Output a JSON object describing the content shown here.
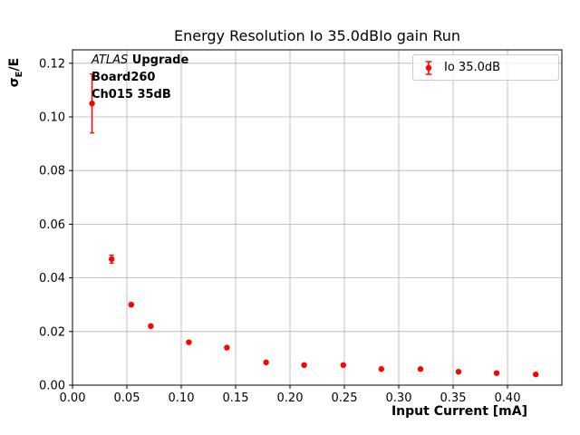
{
  "chart_data": {
    "type": "scatter",
    "title": "Energy Resolution Io 35.0dBIo gain Run",
    "xlabel": "Input Current [mA]",
    "ylabel": {
      "prefix": "σ",
      "sub": "E",
      "suffix": "/E"
    },
    "xlim": [
      0,
      0.45
    ],
    "ylim": [
      0,
      0.125
    ],
    "grid": true,
    "xticks": [
      0.0,
      0.05,
      0.1,
      0.15,
      0.2,
      0.25,
      0.3,
      0.35,
      0.4
    ],
    "xtick_labels": [
      "0.00",
      "0.05",
      "0.10",
      "0.15",
      "0.20",
      "0.25",
      "0.30",
      "0.35",
      "0.40"
    ],
    "yticks": [
      0.0,
      0.02,
      0.04,
      0.06,
      0.08,
      0.1,
      0.12
    ],
    "ytick_labels": [
      "0.00",
      "0.02",
      "0.04",
      "0.06",
      "0.08",
      "0.10",
      "0.12"
    ],
    "legend": {
      "position": "upper right",
      "entries": [
        {
          "label": "Io 35.0dB",
          "color": "#ff0000",
          "marker": "errorbar-point"
        }
      ]
    },
    "annotation": {
      "line1_italic": "ATLAS",
      "line1_bold": " Upgrade",
      "line2": "Board260",
      "line3": "Ch015 35dB"
    },
    "series": [
      {
        "name": "Io 35.0dB",
        "color": "#ff0000",
        "x": [
          0.018,
          0.036,
          0.054,
          0.072,
          0.107,
          0.142,
          0.178,
          0.213,
          0.249,
          0.284,
          0.32,
          0.355,
          0.39,
          0.426
        ],
        "y": [
          0.105,
          0.047,
          0.03,
          0.022,
          0.016,
          0.014,
          0.0085,
          0.0075,
          0.0075,
          0.006,
          0.006,
          0.005,
          0.0045,
          0.004
        ],
        "yerr": [
          0.011,
          0.0015,
          0.0006,
          0.0005,
          0.0004,
          0.0004,
          0.0003,
          0.0003,
          0.0003,
          0.0003,
          0.0003,
          0.0003,
          0.0003,
          0.0003
        ]
      }
    ],
    "colors": {
      "grid": "#b0b0b0",
      "frame": "#000000",
      "series": "#ff0000",
      "legend_border": "#cccccc"
    }
  }
}
